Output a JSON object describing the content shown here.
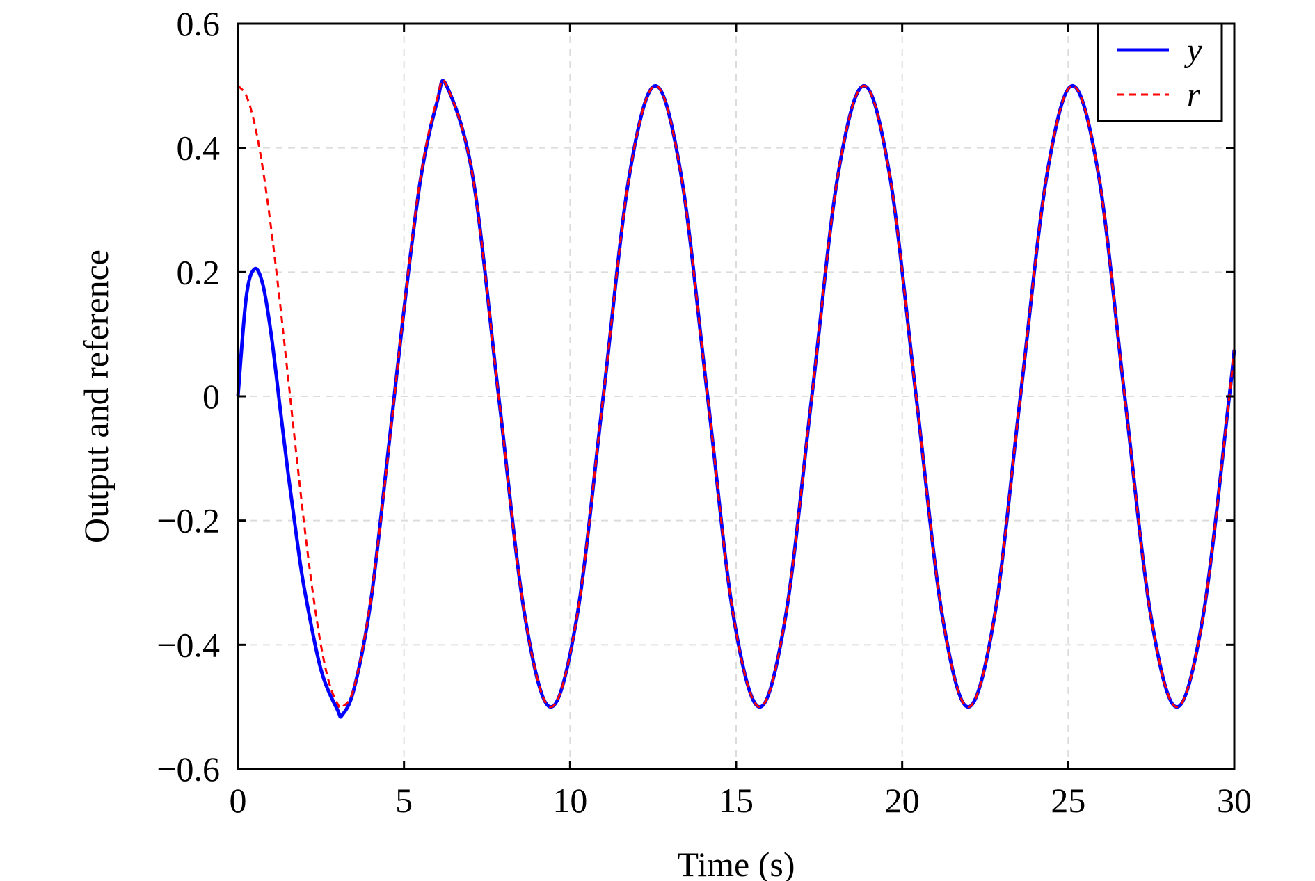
{
  "chart_data": {
    "type": "line",
    "title": "",
    "xlabel": "Time (s)",
    "ylabel": "Output and reference",
    "xlim": [
      0,
      30
    ],
    "ylim": [
      -0.6,
      0.6
    ],
    "xticks": [
      0,
      5,
      10,
      15,
      20,
      25,
      30
    ],
    "xtick_labels": [
      "0",
      "5",
      "10",
      "15",
      "20",
      "25",
      "30"
    ],
    "yticks": [
      -0.6,
      -0.4,
      -0.2,
      0,
      0.2,
      0.4,
      0.6
    ],
    "ytick_labels": [
      "−0.6",
      "−0.4",
      "−0.2",
      "0",
      "0.2",
      "0.4",
      "0.6"
    ],
    "grid": true,
    "legend_position": "top-right",
    "series": [
      {
        "name": "y",
        "style": "solid",
        "color": "#0000ff",
        "x": [
          0,
          0.25,
          0.5,
          0.75,
          1.0,
          1.25,
          1.5,
          1.75,
          2.0,
          2.5,
          3.0,
          3.14,
          3.5,
          4.0,
          4.5,
          5.0,
          5.5,
          6.0,
          6.28,
          7.07,
          7.85,
          8.64,
          9.42,
          10.21,
          11.0,
          11.78,
          12.57,
          13.35,
          14.14,
          14.92,
          15.71,
          16.49,
          17.28,
          18.06,
          18.85,
          19.63,
          20.42,
          21.21,
          21.99,
          22.78,
          23.56,
          24.35,
          25.13,
          25.92,
          26.7,
          27.49,
          28.27,
          29.06,
          29.85,
          30.0
        ],
        "y": [
          0,
          0.16,
          0.205,
          0.18,
          0.1,
          -0.01,
          -0.12,
          -0.22,
          -0.31,
          -0.44,
          -0.505,
          -0.513,
          -0.47,
          -0.33,
          -0.1,
          0.14,
          0.35,
          0.475,
          0.5,
          0.354,
          0.0,
          -0.354,
          -0.5,
          -0.354,
          0.0,
          0.354,
          0.5,
          0.354,
          0.0,
          -0.354,
          -0.5,
          -0.354,
          0.0,
          0.354,
          0.5,
          0.354,
          0.0,
          -0.354,
          -0.5,
          -0.354,
          0.0,
          0.354,
          0.5,
          0.354,
          0.0,
          -0.354,
          -0.5,
          -0.354,
          0.0,
          0.075
        ]
      },
      {
        "name": "r",
        "style": "dashed",
        "color": "#ff0000",
        "x": [
          0,
          0.25,
          0.5,
          0.75,
          1.0,
          1.25,
          1.5,
          1.75,
          2.0,
          2.25,
          2.5,
          2.75,
          3.0,
          3.14,
          3.5,
          4.0,
          4.5,
          5.0,
          5.5,
          6.0,
          6.28,
          7.07,
          7.85,
          8.64,
          9.42,
          10.21,
          11.0,
          11.78,
          12.57,
          13.35,
          14.14,
          14.92,
          15.71,
          16.49,
          17.28,
          18.06,
          18.85,
          19.63,
          20.42,
          21.21,
          21.99,
          22.78,
          23.56,
          24.35,
          25.13,
          25.92,
          26.7,
          27.49,
          28.27,
          29.06,
          29.85,
          30.0
        ],
        "y": [
          0.5,
          0.484,
          0.439,
          0.366,
          0.27,
          0.158,
          0.035,
          -0.089,
          -0.208,
          -0.314,
          -0.401,
          -0.462,
          -0.495,
          -0.5,
          -0.468,
          -0.327,
          -0.105,
          0.142,
          0.354,
          0.48,
          0.5,
          0.354,
          0.0,
          -0.354,
          -0.5,
          -0.354,
          0.0,
          0.354,
          0.5,
          0.354,
          0.0,
          -0.354,
          -0.5,
          -0.354,
          0.0,
          0.354,
          0.5,
          0.354,
          0.0,
          -0.354,
          -0.5,
          -0.354,
          0.0,
          0.354,
          0.5,
          0.354,
          0.0,
          -0.354,
          -0.5,
          -0.354,
          0.0,
          0.077
        ]
      }
    ]
  }
}
